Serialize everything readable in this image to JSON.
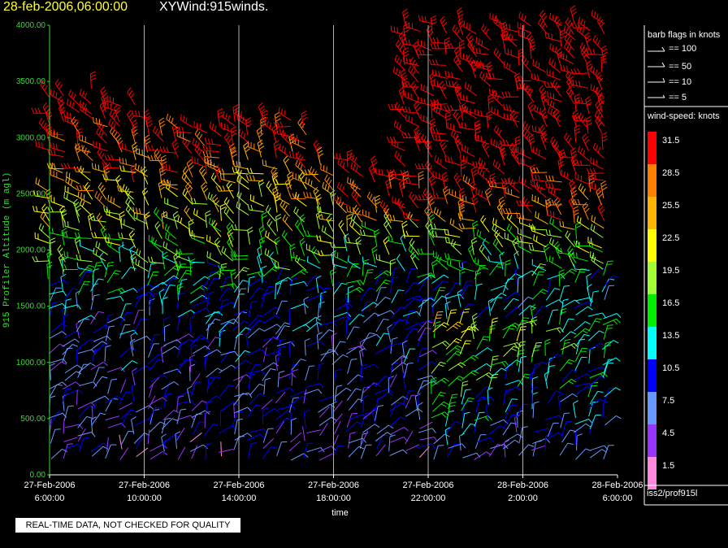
{
  "header": {
    "date": "28-feb-2006,06:00:00",
    "title": "XYWind:915winds."
  },
  "chart_data": {
    "type": "wind-barb",
    "ylabel": "915 Profiler Altitude (m agl)",
    "xlabel": "time",
    "ylim": [
      0,
      4000
    ],
    "xlim_hours": [
      0,
      24
    ],
    "y_ticks": [
      "0.00",
      "500.00",
      "1000.00",
      "1500.00",
      "2000.00",
      "2500.00",
      "3000.00",
      "3500.00",
      "4000.00"
    ],
    "y_tick_values": [
      0,
      500,
      1000,
      1500,
      2000,
      2500,
      3000,
      3500,
      4000
    ],
    "x_ticks": [
      {
        "hour": 0,
        "line1": "27-Feb-2006",
        "line2": "6:00:00"
      },
      {
        "hour": 4,
        "line1": "27-Feb-2006",
        "line2": "10:00:00"
      },
      {
        "hour": 8,
        "line1": "27-Feb-2006",
        "line2": "14:00:00"
      },
      {
        "hour": 12,
        "line1": "27-Feb-2006",
        "line2": "18:00:00"
      },
      {
        "hour": 16,
        "line1": "27-Feb-2006",
        "line2": "22:00:00"
      },
      {
        "hour": 20,
        "line1": "28-Feb-2006",
        "line2": "2:00:00"
      },
      {
        "hour": 24,
        "line1": "28-Feb-2006",
        "line2": "6:00:00"
      }
    ],
    "grid_vertical": true,
    "speed_bins": [
      {
        "label": "31.5",
        "color": "#ff0000"
      },
      {
        "label": "28.5",
        "color": "#ff8000"
      },
      {
        "label": "25.5",
        "color": "#ffb300"
      },
      {
        "label": "22.5",
        "color": "#ffff00"
      },
      {
        "label": "19.5",
        "color": "#a0ff33"
      },
      {
        "label": "16.5",
        "color": "#00ee00"
      },
      {
        "label": "13.5",
        "color": "#00ffff"
      },
      {
        "label": "10.5",
        "color": "#0000ff"
      },
      {
        "label": "7.5",
        "color": "#6699ff"
      },
      {
        "label": "4.5",
        "color": "#9933ff"
      },
      {
        "label": "1.5",
        "color": "#ff88dd"
      }
    ]
  },
  "legend": {
    "barb_title": "barb flags in knots",
    "barb_items": [
      "== 100",
      "== 50",
      "== 10",
      "== 5"
    ],
    "speed_title": "wind-speed: knots"
  },
  "footer": {
    "qc_note": "REAL-TIME DATA, NOT CHECKED FOR QUALITY",
    "source": "iss2/prof915l"
  }
}
